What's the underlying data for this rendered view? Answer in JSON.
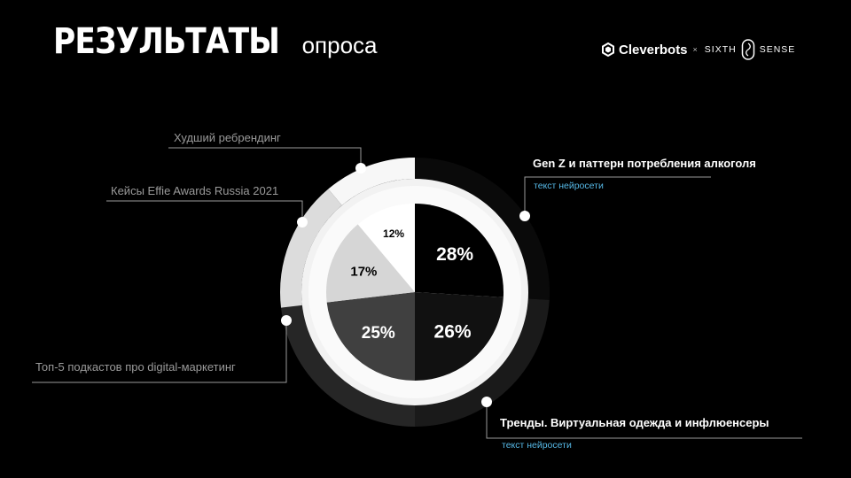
{
  "header": {
    "title_main": "РЕЗУЛЬТАТЫ",
    "title_sub": "опроса"
  },
  "logos": {
    "cleverbots": "Cleverbots",
    "separator": "×",
    "sixth": "SIXTH",
    "sense": "SENSE"
  },
  "chart_data": {
    "type": "pie",
    "inner_values": [
      28,
      26,
      25,
      17,
      12
    ],
    "inner_labels": [
      "28%",
      "26%",
      "25%",
      "17%",
      "12%"
    ],
    "inner_colors": [
      "#000000",
      "#111111",
      "#404040",
      "#d6d6d6",
      "#ffffff"
    ],
    "outer_values": [
      28,
      26,
      25,
      17,
      12
    ],
    "outer_colors": [
      "#0a0a0a",
      "#1a1a1a",
      "#262626",
      "#dcdcdc",
      "#f7f7f7"
    ],
    "categories": [
      "Gen Z и паттерн потребления алкоголя",
      "Тренды. Виртуальная одежда и инфлюенсеры",
      "Топ-5 подкастов про digital-маркетинг",
      "Кейсы Effie Awards Russia 2021",
      "Худший ребрендинг"
    ]
  },
  "annotations": {
    "top_right": {
      "title": "Gen Z и паттерн потребления алкоголя",
      "sub": "текст нейросети"
    },
    "bottom_right": {
      "title": "Тренды. Виртуальная одежда и инфлюенсеры",
      "sub": "текст нейросети"
    },
    "left_bottom": "Топ-5 подкастов про digital-маркетинг",
    "left_mid": "Кейсы Effie Awards Russia 2021",
    "left_top": "Худший ребрендинг"
  }
}
